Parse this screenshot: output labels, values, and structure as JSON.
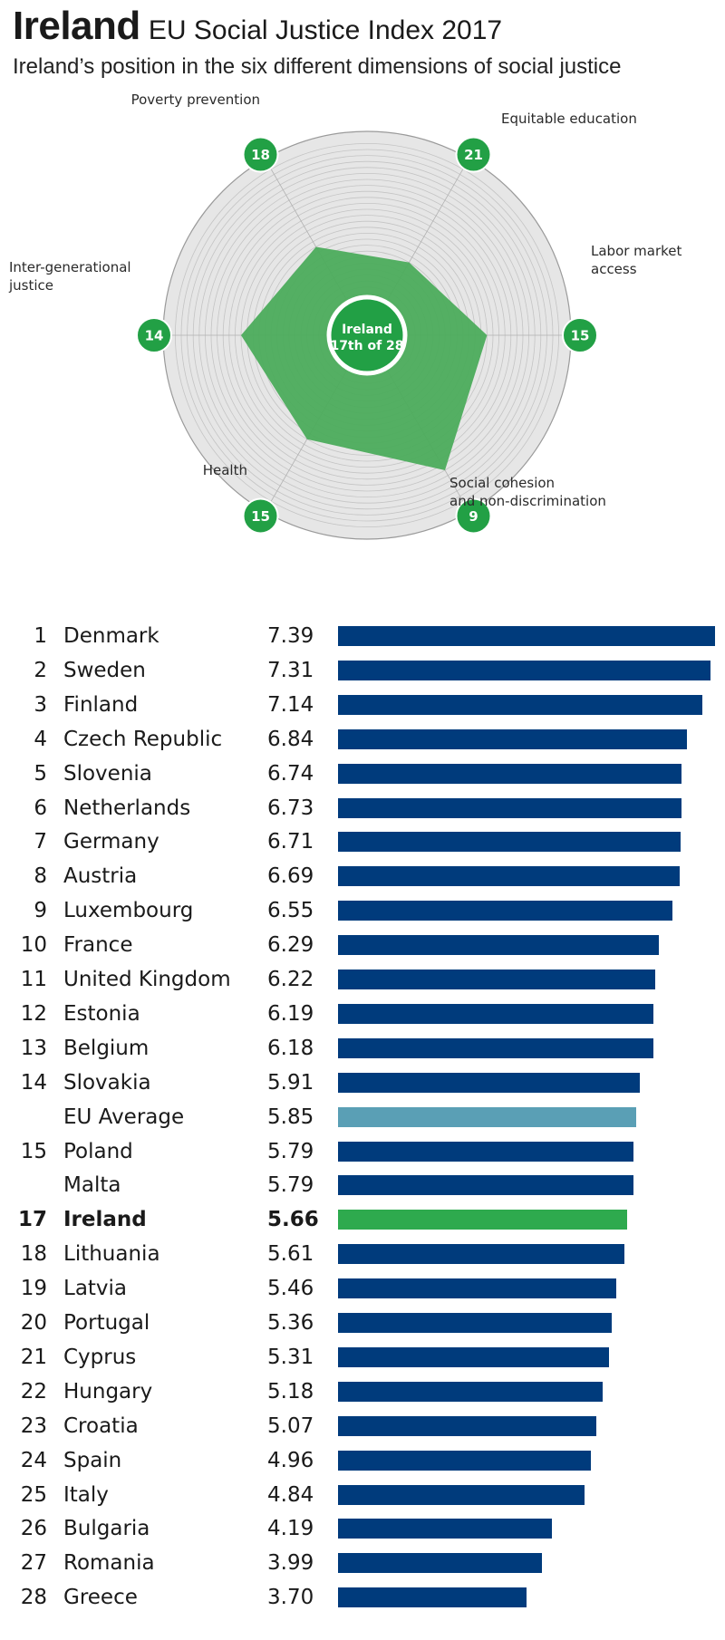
{
  "header": {
    "title_bold": "Ireland",
    "title_rest": "EU Social Justice Index 2017",
    "subtitle": "Ireland’s position in the six  different dimensions of social justice"
  },
  "colors": {
    "bar_default": "#003b7c",
    "bar_eu_average": "#5a9fb5",
    "bar_highlight": "#2eaa4e",
    "radar_fill": "#4cac5c",
    "radar_bg": "#e6e6e6",
    "badge": "#22a045"
  },
  "chart_data": [
    {
      "type": "radar",
      "title": "Ireland’s position in the six  different dimensions of social justice",
      "center_label": [
        "Ireland",
        "17th of 28"
      ],
      "scale": "rank (1 = best, 28 = worst); better rank plotted further from center",
      "rank_range": [
        1,
        28
      ],
      "axes": [
        {
          "label_lines": [
            "Poverty prevention"
          ],
          "rank": 18
        },
        {
          "label_lines": [
            "Equitable education"
          ],
          "rank": 21
        },
        {
          "label_lines": [
            "Labor market",
            "access"
          ],
          "rank": 15
        },
        {
          "label_lines": [
            "Social cohesion",
            "and non-discrimination"
          ],
          "rank": 9
        },
        {
          "label_lines": [
            "Health"
          ],
          "rank": 15
        },
        {
          "label_lines": [
            "Inter-generational",
            "justice"
          ],
          "rank": 14
        }
      ]
    },
    {
      "type": "bar",
      "orientation": "horizontal",
      "title": "EU Social Justice Index 2017",
      "xlim": [
        0,
        7.39
      ],
      "rows": [
        {
          "rank": "1",
          "country": "Denmark",
          "score": "7.39",
          "value": 7.39,
          "kind": "country"
        },
        {
          "rank": "2",
          "country": "Sweden",
          "score": "7.31",
          "value": 7.31,
          "kind": "country"
        },
        {
          "rank": "3",
          "country": "Finland",
          "score": "7.14",
          "value": 7.14,
          "kind": "country"
        },
        {
          "rank": "4",
          "country": "Czech Republic",
          "score": "6.84",
          "value": 6.84,
          "kind": "country"
        },
        {
          "rank": "5",
          "country": "Slovenia",
          "score": "6.74",
          "value": 6.74,
          "kind": "country"
        },
        {
          "rank": "6",
          "country": "Netherlands",
          "score": "6.73",
          "value": 6.73,
          "kind": "country"
        },
        {
          "rank": "7",
          "country": "Germany",
          "score": "6.71",
          "value": 6.71,
          "kind": "country"
        },
        {
          "rank": "8",
          "country": "Austria",
          "score": "6.69",
          "value": 6.69,
          "kind": "country"
        },
        {
          "rank": "9",
          "country": "Luxembourg",
          "score": "6.55",
          "value": 6.55,
          "kind": "country"
        },
        {
          "rank": "10",
          "country": "France",
          "score": "6.29",
          "value": 6.29,
          "kind": "country"
        },
        {
          "rank": "11",
          "country": "United Kingdom",
          "score": "6.22",
          "value": 6.22,
          "kind": "country"
        },
        {
          "rank": "12",
          "country": "Estonia",
          "score": "6.19",
          "value": 6.19,
          "kind": "country"
        },
        {
          "rank": "13",
          "country": "Belgium",
          "score": "6.18",
          "value": 6.18,
          "kind": "country"
        },
        {
          "rank": "14",
          "country": "Slovakia",
          "score": "5.91",
          "value": 5.91,
          "kind": "country"
        },
        {
          "rank": "",
          "country": "EU Average",
          "score": "5.85",
          "value": 5.85,
          "kind": "average"
        },
        {
          "rank": "15",
          "country": "Poland",
          "score": "5.79",
          "value": 5.79,
          "kind": "country"
        },
        {
          "rank": "",
          "country": "Malta",
          "score": "5.79",
          "value": 5.79,
          "kind": "country"
        },
        {
          "rank": "17",
          "country": "Ireland",
          "score": "5.66",
          "value": 5.66,
          "kind": "highlight"
        },
        {
          "rank": "18",
          "country": "Lithuania",
          "score": "5.61",
          "value": 5.61,
          "kind": "country"
        },
        {
          "rank": "19",
          "country": "Latvia",
          "score": "5.46",
          "value": 5.46,
          "kind": "country"
        },
        {
          "rank": "20",
          "country": "Portugal",
          "score": "5.36",
          "value": 5.36,
          "kind": "country"
        },
        {
          "rank": "21",
          "country": "Cyprus",
          "score": "5.31",
          "value": 5.31,
          "kind": "country"
        },
        {
          "rank": "22",
          "country": "Hungary",
          "score": "5.18",
          "value": 5.18,
          "kind": "country"
        },
        {
          "rank": "23",
          "country": "Croatia",
          "score": "5.07",
          "value": 5.07,
          "kind": "country"
        },
        {
          "rank": "24",
          "country": "Spain",
          "score": "4.96",
          "value": 4.96,
          "kind": "country"
        },
        {
          "rank": "25",
          "country": "Italy",
          "score": "4.84",
          "value": 4.84,
          "kind": "country"
        },
        {
          "rank": "26",
          "country": "Bulgaria",
          "score": "4.19",
          "value": 4.19,
          "kind": "country"
        },
        {
          "rank": "27",
          "country": "Romania",
          "score": "3.99",
          "value": 3.99,
          "kind": "country"
        },
        {
          "rank": "28",
          "country": "Greece",
          "score": "3.70",
          "value": 3.7,
          "kind": "country"
        }
      ]
    }
  ]
}
